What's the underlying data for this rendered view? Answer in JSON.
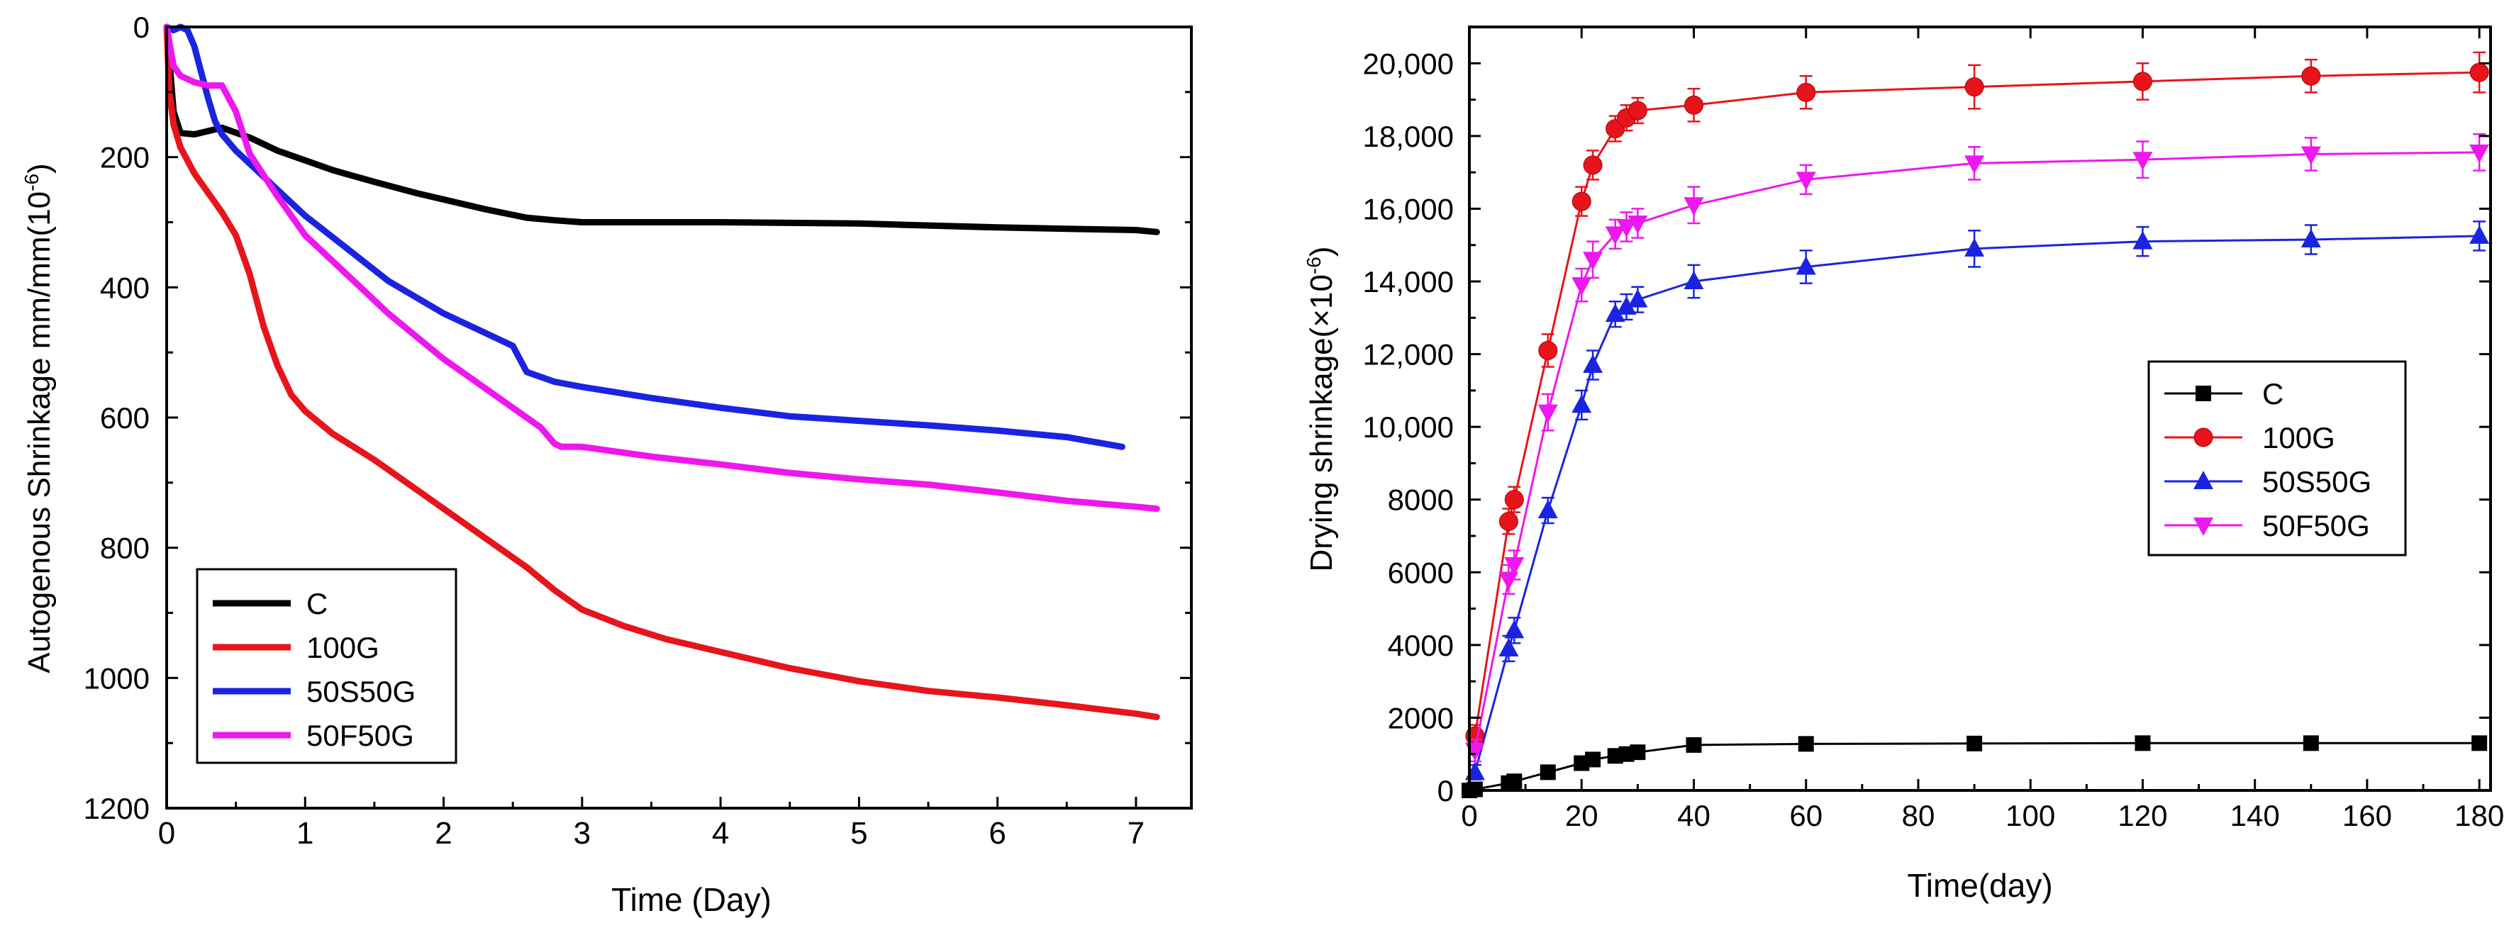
{
  "chart_data": [
    {
      "type": "line",
      "title": "",
      "xlabel": "Time (Day)",
      "ylabel": "Autogenous Shrinkage  mm/mm(10",
      "ylabel_exp": "-6",
      "ylabel_tail": ")",
      "xlim": [
        0,
        7.4
      ],
      "ylim": [
        0,
        1200
      ],
      "y_inverted": true,
      "xticks": [
        "0",
        "1",
        "2",
        "3",
        "4",
        "5",
        "6",
        "7"
      ],
      "yticks": [
        "0",
        "200",
        "400",
        "600",
        "800",
        "1000",
        "1200"
      ],
      "xtick_values": [
        0,
        1,
        2,
        3,
        4,
        5,
        6,
        7
      ],
      "ytick_values": [
        0,
        200,
        400,
        600,
        800,
        1000,
        1200
      ],
      "legend_position": "bottom-left",
      "series": [
        {
          "name": "C",
          "color": "#000000",
          "x": [
            0,
            0.05,
            0.1,
            0.2,
            0.4,
            0.6,
            0.8,
            1.0,
            1.2,
            1.5,
            1.8,
            2.0,
            2.3,
            2.6,
            2.8,
            3.0,
            3.5,
            4.0,
            4.5,
            5.0,
            5.5,
            6.0,
            6.5,
            7.0,
            7.15
          ],
          "y": [
            0,
            130,
            163,
            165,
            155,
            170,
            190,
            205,
            220,
            238,
            255,
            265,
            280,
            293,
            297,
            300,
            300,
            300,
            301,
            302,
            305,
            308,
            310,
            312,
            315
          ]
        },
        {
          "name": "100G",
          "color": "#e8141b",
          "x": [
            0,
            0.02,
            0.05,
            0.1,
            0.2,
            0.3,
            0.4,
            0.5,
            0.6,
            0.7,
            0.8,
            0.9,
            1.0,
            1.2,
            1.5,
            1.8,
            2.0,
            2.3,
            2.6,
            2.8,
            3.0,
            3.3,
            3.6,
            4.0,
            4.5,
            5.0,
            5.5,
            6.0,
            6.5,
            7.0,
            7.15
          ],
          "y": [
            0,
            100,
            150,
            185,
            225,
            255,
            285,
            320,
            380,
            460,
            520,
            565,
            590,
            625,
            665,
            710,
            740,
            785,
            830,
            865,
            895,
            920,
            940,
            960,
            985,
            1005,
            1020,
            1030,
            1042,
            1055,
            1060
          ]
        },
        {
          "name": "50S50G",
          "color": "#1a24e0",
          "x": [
            0,
            0.05,
            0.1,
            0.15,
            0.2,
            0.25,
            0.3,
            0.35,
            0.4,
            0.5,
            0.6,
            0.8,
            1.0,
            1.3,
            1.6,
            2.0,
            2.3,
            2.5,
            2.6,
            2.8,
            3.0,
            3.5,
            4.0,
            4.5,
            5.0,
            5.5,
            6.0,
            6.5,
            6.9
          ],
          "y": [
            0,
            5,
            0,
            5,
            30,
            70,
            110,
            145,
            165,
            190,
            210,
            250,
            290,
            340,
            390,
            440,
            470,
            490,
            530,
            545,
            553,
            570,
            585,
            598,
            605,
            612,
            620,
            630,
            645
          ]
        },
        {
          "name": "50F50G",
          "color": "#ee17ee",
          "x": [
            0,
            0.05,
            0.1,
            0.2,
            0.3,
            0.4,
            0.5,
            0.6,
            0.8,
            1.0,
            1.3,
            1.6,
            2.0,
            2.4,
            2.7,
            2.8,
            2.85,
            3.0,
            3.5,
            4.0,
            4.5,
            5.0,
            5.5,
            6.0,
            6.5,
            7.0,
            7.15
          ],
          "y": [
            0,
            60,
            75,
            85,
            90,
            90,
            130,
            195,
            260,
            320,
            380,
            440,
            510,
            570,
            615,
            640,
            645,
            645,
            660,
            672,
            685,
            695,
            703,
            715,
            728,
            737,
            740
          ]
        }
      ]
    },
    {
      "type": "line",
      "title": "",
      "xlabel": "Time(day)",
      "ylabel": "Drying shrinkage(×10",
      "ylabel_exp": "-6",
      "ylabel_tail": ")",
      "xlim": [
        0,
        182
      ],
      "ylim": [
        0,
        21000
      ],
      "xticks": [
        "0",
        "20",
        "40",
        "60",
        "80",
        "100",
        "120",
        "140",
        "160",
        "180"
      ],
      "xtick_values": [
        0,
        20,
        40,
        60,
        80,
        100,
        120,
        140,
        160,
        180
      ],
      "yticks": [
        "0",
        "2000",
        "4000",
        "6000",
        "8000",
        "10,000",
        "12,000",
        "14,000",
        "16,000",
        "18,000",
        "20,000"
      ],
      "ytick_values": [
        0,
        2000,
        4000,
        6000,
        8000,
        10000,
        12000,
        14000,
        16000,
        18000,
        20000
      ],
      "legend_position": "center-right",
      "series": [
        {
          "name": "C",
          "color": "#000000",
          "marker": "square",
          "x": [
            0,
            1,
            7,
            8,
            14,
            20,
            22,
            26,
            28,
            30,
            40,
            60,
            90,
            120,
            150,
            180
          ],
          "y": [
            0,
            30,
            200,
            250,
            500,
            750,
            850,
            950,
            1000,
            1050,
            1250,
            1280,
            1290,
            1300,
            1300,
            1300
          ],
          "err": [
            0,
            0,
            0,
            0,
            0,
            0,
            0,
            0,
            0,
            0,
            0,
            0,
            0,
            0,
            0,
            0
          ]
        },
        {
          "name": "100G",
          "color": "#e8141b",
          "marker": "circle",
          "x": [
            1,
            7,
            8,
            14,
            20,
            22,
            26,
            28,
            30,
            40,
            60,
            90,
            120,
            150,
            180
          ],
          "y": [
            1500,
            7400,
            8000,
            12100,
            16200,
            17200,
            18200,
            18500,
            18700,
            18850,
            19200,
            19350,
            19500,
            19650,
            19750
          ],
          "err": [
            300,
            350,
            350,
            450,
            400,
            400,
            350,
            350,
            350,
            450,
            450,
            600,
            500,
            450,
            550
          ]
        },
        {
          "name": "50S50G",
          "color": "#1a24e0",
          "marker": "triangle-up",
          "x": [
            1,
            7,
            8,
            14,
            20,
            22,
            26,
            28,
            30,
            40,
            60,
            90,
            120,
            150,
            180
          ],
          "y": [
            500,
            3900,
            4400,
            7700,
            10600,
            11700,
            13100,
            13300,
            13500,
            14000,
            14400,
            14900,
            15100,
            15150,
            15250
          ],
          "err": [
            200,
            350,
            350,
            350,
            400,
            400,
            350,
            350,
            350,
            450,
            450,
            500,
            400,
            400,
            400
          ]
        },
        {
          "name": "50F50G",
          "color": "#ee17ee",
          "marker": "triangle-down",
          "x": [
            1,
            7,
            8,
            14,
            20,
            22,
            26,
            28,
            30,
            40,
            60,
            90,
            120,
            150,
            180
          ],
          "y": [
            1100,
            5800,
            6200,
            10400,
            13900,
            14600,
            15300,
            15500,
            15600,
            16100,
            16800,
            17250,
            17350,
            17500,
            17550
          ],
          "err": [
            300,
            400,
            400,
            500,
            450,
            500,
            400,
            400,
            400,
            500,
            400,
            450,
            500,
            450,
            500
          ]
        }
      ]
    }
  ]
}
